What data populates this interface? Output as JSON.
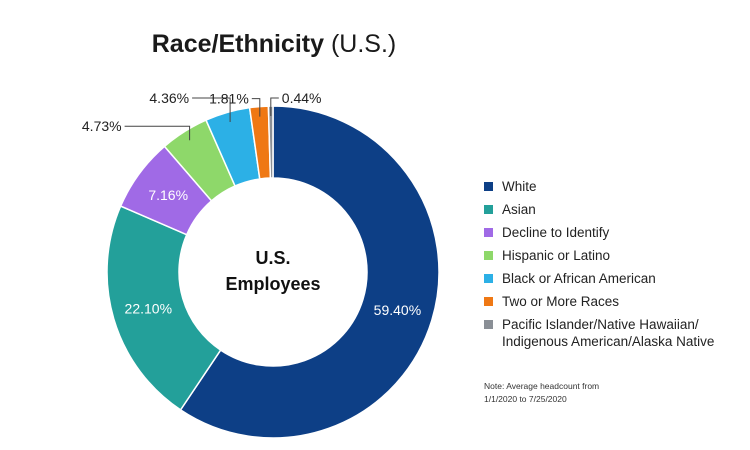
{
  "chart_data": {
    "type": "pie",
    "title": "Race/Ethnicity",
    "subtitle": "(U.S.)",
    "center_label": "U.S.\nEmployees",
    "series": [
      {
        "name": "White",
        "value": 59.4,
        "label": "59.40%",
        "color": "#0d3f86"
      },
      {
        "name": "Asian",
        "value": 22.1,
        "label": "22.10%",
        "color": "#23a09a"
      },
      {
        "name": "Decline to Identify",
        "value": 7.16,
        "label": "7.16%",
        "color": "#a06ae6"
      },
      {
        "name": "Hispanic or Latino",
        "value": 4.73,
        "label": "4.73%",
        "color": "#8ed86a"
      },
      {
        "name": "Black or African American",
        "value": 4.36,
        "label": "4.36%",
        "color": "#2cb0e6"
      },
      {
        "name": "Two or More Races",
        "value": 1.81,
        "label": "1.81%",
        "color": "#ef7814"
      },
      {
        "name": "Pacific Islander/Native Hawaiian/\nIndigenous American/Alaska Native",
        "value": 0.44,
        "label": "0.44%",
        "color": "#8a8f96"
      }
    ],
    "legend_position": "right"
  },
  "note": "Note: Average headcount from\n1/1/2020 to 7/25/2020"
}
